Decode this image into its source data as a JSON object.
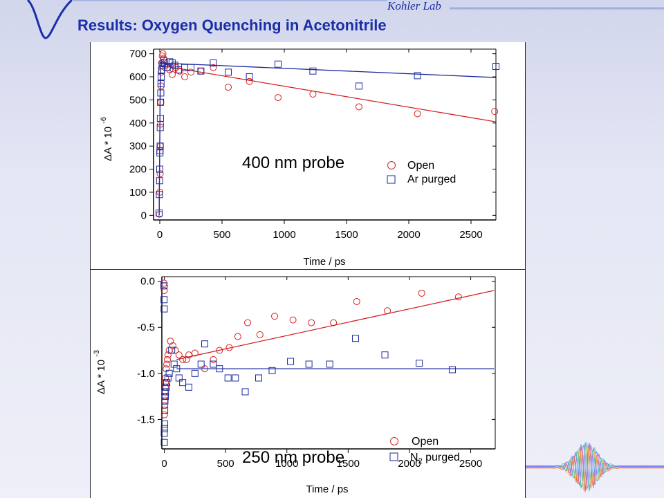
{
  "slide": {
    "title": "Results: Oxygen Quenching in Acetonitrile",
    "lab": "Kohler Lab"
  },
  "colors": {
    "open": "#d42020",
    "purged": "#1a2a9c",
    "title": "#1a2ea8"
  },
  "icons": [
    "wave-logo-icon",
    "waveform-icon"
  ],
  "chart_data": [
    {
      "type": "scatter",
      "probe_label": "400 nm probe",
      "xlabel": "Time / ps",
      "ylabel": "ΔA * 10",
      "ylabel_exponent": "-6",
      "xlim": [
        -50,
        2700
      ],
      "ylim": [
        -20,
        720
      ],
      "xticks": [
        0,
        500,
        1000,
        1500,
        2000,
        2500
      ],
      "yticks": [
        0,
        100,
        200,
        300,
        400,
        500,
        600,
        700
      ],
      "xtick_labels": [
        "0",
        "500",
        "1000",
        "1500",
        "2000",
        "2500"
      ],
      "ytick_labels": [
        "0",
        "100",
        "200",
        "300",
        "400",
        "500",
        "600",
        "700"
      ],
      "legend": [
        {
          "marker": "circle",
          "label": "Open"
        },
        {
          "marker": "square",
          "label": "Ar purged"
        }
      ],
      "series": [
        {
          "name": "Open",
          "marker": "circle",
          "x": [
            -3,
            0,
            3,
            5,
            6,
            8,
            10,
            12,
            15,
            20,
            25,
            30,
            40,
            60,
            80,
            100,
            130,
            160,
            200,
            250,
            330,
            430,
            550,
            720,
            950,
            1230,
            1600,
            2070,
            2690
          ],
          "y": [
            5,
            100,
            180,
            300,
            395,
            490,
            560,
            620,
            660,
            690,
            700,
            680,
            650,
            640,
            630,
            610,
            640,
            625,
            600,
            620,
            625,
            640,
            555,
            580,
            510,
            525,
            470,
            440,
            450
          ]
        },
        {
          "name": "Ar purged",
          "marker": "square",
          "x": [
            -5,
            -3,
            -1,
            0,
            1,
            2,
            3,
            4,
            5,
            6,
            8,
            10,
            12,
            15,
            20,
            30,
            40,
            60,
            80,
            100,
            120,
            150,
            200,
            250,
            330,
            430,
            550,
            720,
            950,
            1230,
            1600,
            2070,
            2700
          ],
          "y": [
            10,
            90,
            150,
            200,
            270,
            280,
            300,
            380,
            420,
            490,
            530,
            570,
            600,
            630,
            650,
            670,
            660,
            640,
            665,
            660,
            650,
            630,
            640,
            640,
            625,
            660,
            620,
            600,
            655,
            625,
            560,
            605,
            645
          ]
        }
      ],
      "fits": [
        {
          "series": "Open",
          "x": [
            0,
            2700
          ],
          "y": [
            650,
            405
          ],
          "rise": [
            [
              -5,
              0
            ],
            [
              5,
              650
            ]
          ]
        },
        {
          "series": "Ar purged",
          "x": [
            0,
            2700
          ],
          "y": [
            660,
            597
          ],
          "rise": [
            [
              -5,
              0
            ],
            [
              5,
              660
            ]
          ]
        }
      ]
    },
    {
      "type": "scatter",
      "probe_label": "250 nm probe",
      "xlabel": "Time / ps",
      "ylabel": "ΔA * 10",
      "ylabel_exponent": "-3",
      "xlim": [
        -20,
        2700
      ],
      "ylim": [
        -1.82,
        0.05
      ],
      "xticks": [
        0,
        500,
        1000,
        1500,
        2000,
        2500
      ],
      "yticks": [
        0.0,
        -0.5,
        -1.0,
        -1.5
      ],
      "xtick_labels": [
        "0",
        "500",
        "1000",
        "1500",
        "2000",
        "2500"
      ],
      "ytick_labels": [
        "0.0",
        "-0.5",
        "-1.0",
        "-1.5"
      ],
      "legend": [
        {
          "marker": "circle",
          "label": "Open"
        },
        {
          "marker": "square",
          "label": "N",
          "subscript": "2",
          "suffix": " purged"
        }
      ],
      "series": [
        {
          "name": "Open",
          "marker": "circle",
          "x": [
            -2,
            0,
            0,
            1,
            2,
            3,
            5,
            5,
            8,
            10,
            10,
            15,
            20,
            25,
            30,
            40,
            50,
            70,
            90,
            120,
            150,
            180,
            200,
            250,
            330,
            400,
            450,
            530,
            600,
            680,
            780,
            900,
            1050,
            1200,
            1380,
            1570,
            1820,
            2100,
            2400
          ],
          "y": [
            -0.02,
            -0.05,
            -0.1,
            -1.45,
            -1.35,
            -1.3,
            -1.2,
            -1.25,
            -1.15,
            -1.05,
            -1.1,
            -0.95,
            -0.9,
            -0.85,
            -0.8,
            -0.75,
            -0.65,
            -0.7,
            -0.75,
            -0.8,
            -0.85,
            -0.85,
            -0.8,
            -0.78,
            -0.95,
            -0.85,
            -0.75,
            -0.72,
            -0.6,
            -0.45,
            -0.58,
            -0.38,
            -0.42,
            -0.45,
            -0.45,
            -0.22,
            -0.32,
            -0.13,
            -0.17
          ]
        },
        {
          "name": "N2 purged",
          "marker": "square",
          "x": [
            -3,
            -2,
            -1,
            0,
            0,
            1,
            2,
            3,
            5,
            8,
            10,
            15,
            20,
            30,
            40,
            60,
            80,
            100,
            120,
            150,
            200,
            250,
            300,
            330,
            400,
            450,
            520,
            580,
            660,
            770,
            880,
            1030,
            1180,
            1350,
            1560,
            1800,
            2080,
            2350
          ],
          "y": [
            -0.05,
            -0.2,
            -0.3,
            -1.75,
            -1.65,
            -1.6,
            -1.55,
            -1.4,
            -1.3,
            -1.25,
            -1.2,
            -1.15,
            -1.1,
            -1.05,
            -1.0,
            -0.75,
            -0.9,
            -0.95,
            -1.05,
            -1.1,
            -1.15,
            -1.0,
            -0.9,
            -0.68,
            -0.9,
            -0.95,
            -1.05,
            -1.05,
            -1.2,
            -1.05,
            -0.97,
            -0.87,
            -0.9,
            -0.9,
            -0.62,
            -0.8,
            -0.89,
            -0.96
          ]
        }
      ],
      "fits": [
        {
          "series": "Open",
          "x": [
            100,
            2690
          ],
          "y": [
            -0.85,
            -0.1
          ]
        },
        {
          "series": "N2 purged",
          "x": [
            100,
            2690
          ],
          "y": [
            -0.95,
            -0.95
          ]
        }
      ]
    }
  ]
}
